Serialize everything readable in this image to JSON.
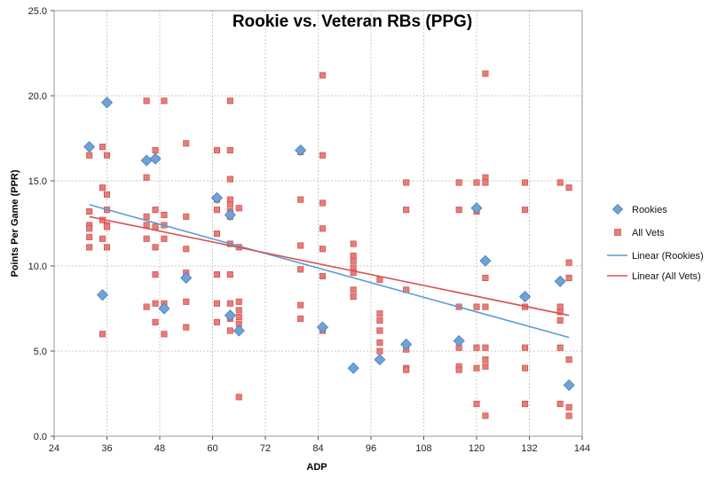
{
  "chart_data": {
    "type": "scatter",
    "title": "Rookie vs. Veteran RBs (PPG)",
    "xlabel": "ADP",
    "ylabel": "Points Per Game (PPR)",
    "xlim": [
      24,
      144
    ],
    "ylim": [
      0,
      25
    ],
    "xticks": [
      "24",
      "36",
      "48",
      "60",
      "72",
      "84",
      "96",
      "108",
      "120",
      "132",
      "144"
    ],
    "yticks": [
      "0.0",
      "5.0",
      "10.0",
      "15.0",
      "20.0",
      "25.0"
    ],
    "grid": "dotted",
    "legend_position": "right",
    "legend": {
      "rookies": "Rookies",
      "vets": "All Vets",
      "trend_rookies": "Linear (Rookies)",
      "trend_vets": "Linear (All Vets)"
    },
    "colors": {
      "rookies": "#6fa3d8",
      "vets": "#e87c78",
      "trend_rookies": "#5b9bd5",
      "trend_vets": "#d9534f",
      "grid": "#c8c8c8"
    },
    "series": [
      {
        "name": "Rookies",
        "marker": "diamond",
        "points": [
          [
            32,
            17.0
          ],
          [
            35,
            8.3
          ],
          [
            36,
            19.6
          ],
          [
            45,
            16.2
          ],
          [
            47,
            16.3
          ],
          [
            49,
            7.5
          ],
          [
            54,
            9.3
          ],
          [
            61,
            14.0
          ],
          [
            64,
            13.0
          ],
          [
            64,
            7.1
          ],
          [
            66,
            6.2
          ],
          [
            80,
            16.8
          ],
          [
            85,
            6.4
          ],
          [
            92,
            4.0
          ],
          [
            98,
            4.5
          ],
          [
            104,
            5.4
          ],
          [
            116,
            5.6
          ],
          [
            120,
            13.4
          ],
          [
            122,
            10.3
          ],
          [
            131,
            8.2
          ],
          [
            139,
            9.1
          ],
          [
            141,
            3.0
          ]
        ]
      },
      {
        "name": "All Vets",
        "marker": "square",
        "points": [
          [
            32,
            16.5
          ],
          [
            32,
            13.2
          ],
          [
            32,
            12.4
          ],
          [
            32,
            12.2
          ],
          [
            32,
            11.7
          ],
          [
            32,
            11.1
          ],
          [
            35,
            17.0
          ],
          [
            35,
            14.6
          ],
          [
            35,
            12.7
          ],
          [
            35,
            11.6
          ],
          [
            35,
            6.0
          ],
          [
            36,
            16.5
          ],
          [
            36,
            14.2
          ],
          [
            36,
            13.3
          ],
          [
            36,
            12.4
          ],
          [
            36,
            12.3
          ],
          [
            36,
            11.1
          ],
          [
            45,
            19.7
          ],
          [
            45,
            15.2
          ],
          [
            45,
            12.9
          ],
          [
            45,
            12.4
          ],
          [
            45,
            11.6
          ],
          [
            45,
            7.6
          ],
          [
            47,
            16.8
          ],
          [
            47,
            13.3
          ],
          [
            47,
            12.3
          ],
          [
            47,
            11.1
          ],
          [
            47,
            9.5
          ],
          [
            47,
            7.8
          ],
          [
            47,
            6.7
          ],
          [
            49,
            19.7
          ],
          [
            49,
            13.0
          ],
          [
            49,
            12.4
          ],
          [
            49,
            11.6
          ],
          [
            49,
            7.8
          ],
          [
            49,
            6.0
          ],
          [
            54,
            17.2
          ],
          [
            54,
            12.9
          ],
          [
            54,
            11.0
          ],
          [
            54,
            9.6
          ],
          [
            54,
            7.9
          ],
          [
            54,
            6.4
          ],
          [
            61,
            16.8
          ],
          [
            61,
            13.9
          ],
          [
            61,
            13.3
          ],
          [
            61,
            11.9
          ],
          [
            61,
            9.5
          ],
          [
            61,
            7.8
          ],
          [
            61,
            6.7
          ],
          [
            64,
            19.7
          ],
          [
            64,
            16.8
          ],
          [
            64,
            15.1
          ],
          [
            64,
            13.9
          ],
          [
            64,
            13.6
          ],
          [
            64,
            13.2
          ],
          [
            64,
            12.9
          ],
          [
            64,
            11.3
          ],
          [
            64,
            9.5
          ],
          [
            64,
            7.8
          ],
          [
            64,
            6.9
          ],
          [
            64,
            6.2
          ],
          [
            66,
            13.4
          ],
          [
            66,
            11.1
          ],
          [
            66,
            7.9
          ],
          [
            66,
            7.4
          ],
          [
            66,
            7.0
          ],
          [
            66,
            6.6
          ],
          [
            66,
            2.3
          ],
          [
            80,
            16.7
          ],
          [
            80,
            13.9
          ],
          [
            80,
            11.2
          ],
          [
            80,
            9.8
          ],
          [
            80,
            7.7
          ],
          [
            80,
            6.9
          ],
          [
            85,
            21.2
          ],
          [
            85,
            16.5
          ],
          [
            85,
            13.7
          ],
          [
            85,
            12.2
          ],
          [
            85,
            11.0
          ],
          [
            85,
            9.4
          ],
          [
            85,
            6.2
          ],
          [
            92,
            11.3
          ],
          [
            92,
            10.6
          ],
          [
            92,
            10.3
          ],
          [
            92,
            9.9
          ],
          [
            92,
            9.6
          ],
          [
            92,
            8.6
          ],
          [
            92,
            8.2
          ],
          [
            98,
            9.2
          ],
          [
            98,
            7.2
          ],
          [
            98,
            6.8
          ],
          [
            98,
            6.2
          ],
          [
            98,
            5.5
          ],
          [
            98,
            5.0
          ],
          [
            104,
            14.9
          ],
          [
            104,
            13.3
          ],
          [
            104,
            8.6
          ],
          [
            104,
            5.1
          ],
          [
            104,
            4.0
          ],
          [
            104,
            3.9
          ],
          [
            116,
            14.9
          ],
          [
            116,
            13.3
          ],
          [
            116,
            7.6
          ],
          [
            116,
            5.2
          ],
          [
            116,
            4.1
          ],
          [
            116,
            3.9
          ],
          [
            120,
            14.9
          ],
          [
            120,
            13.2
          ],
          [
            120,
            7.6
          ],
          [
            120,
            5.2
          ],
          [
            120,
            4.0
          ],
          [
            120,
            1.9
          ],
          [
            122,
            21.3
          ],
          [
            122,
            15.2
          ],
          [
            122,
            14.9
          ],
          [
            122,
            9.3
          ],
          [
            122,
            7.6
          ],
          [
            122,
            5.2
          ],
          [
            122,
            4.5
          ],
          [
            122,
            4.1
          ],
          [
            122,
            1.2
          ],
          [
            131,
            14.9
          ],
          [
            131,
            13.3
          ],
          [
            131,
            7.6
          ],
          [
            131,
            5.2
          ],
          [
            131,
            4.0
          ],
          [
            131,
            1.9
          ],
          [
            139,
            14.9
          ],
          [
            139,
            7.6
          ],
          [
            139,
            7.3
          ],
          [
            139,
            6.8
          ],
          [
            139,
            5.2
          ],
          [
            139,
            1.9
          ],
          [
            141,
            14.6
          ],
          [
            141,
            10.2
          ],
          [
            141,
            9.3
          ],
          [
            141,
            4.5
          ],
          [
            141,
            1.7
          ],
          [
            141,
            1.2
          ]
        ]
      }
    ],
    "trendlines": [
      {
        "name": "Linear (Rookies)",
        "x": [
          32,
          141
        ],
        "y": [
          13.6,
          5.8
        ]
      },
      {
        "name": "Linear (All Vets)",
        "x": [
          32,
          141
        ],
        "y": [
          12.9,
          7.1
        ]
      }
    ]
  }
}
